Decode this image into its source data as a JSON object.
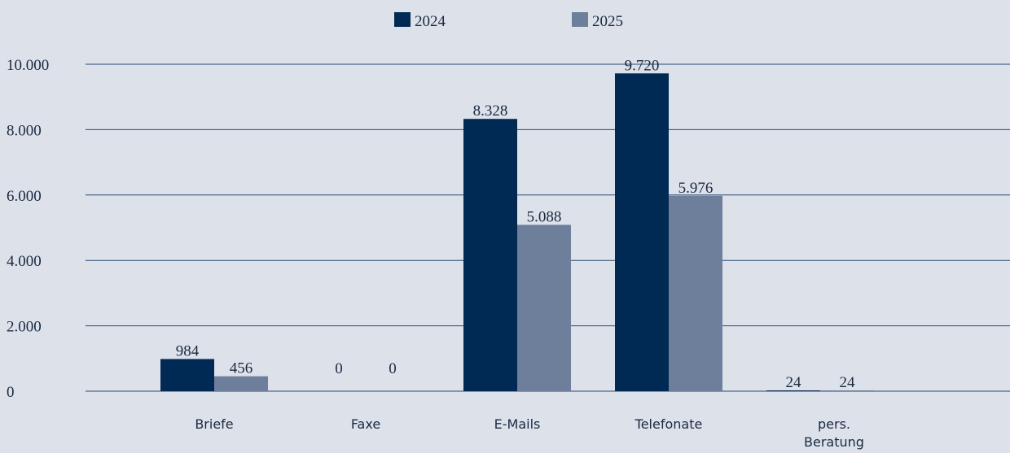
{
  "chart_data": {
    "type": "bar",
    "categories": [
      "Briefe",
      "Faxe",
      "E-Mails",
      "Telefonate",
      "pers. Beratung"
    ],
    "series": [
      {
        "name": "2024",
        "color": "#002a54",
        "values": [
          984,
          0,
          8328,
          9720,
          24
        ],
        "value_labels": [
          "984",
          "0",
          "8.328",
          "9.720",
          "24"
        ]
      },
      {
        "name": "2025",
        "color": "#6e7f9b",
        "values": [
          456,
          0,
          5088,
          5976,
          24
        ],
        "value_labels": [
          "456",
          "0",
          "5.088",
          "5.976",
          "24"
        ]
      }
    ],
    "ylim": [
      0,
      10000
    ],
    "yticks": [
      0,
      {
        "value": 2000,
        "label": "2.000"
      },
      {
        "value": 4000,
        "label": "4.000"
      },
      {
        "value": 6000,
        "label": "6.000"
      },
      {
        "value": 8000,
        "label": "8.000"
      },
      {
        "value": 10000,
        "label": "10.000"
      }
    ],
    "grid": true,
    "legend": "top"
  }
}
